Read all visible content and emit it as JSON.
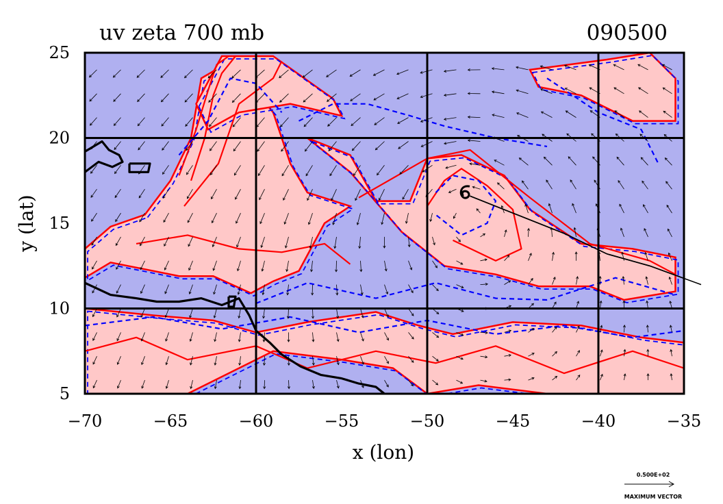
{
  "chart_data": {
    "type": "contour",
    "title": "uv zeta 700 mb",
    "timestamp": "090500",
    "xlabel": "x (lon)",
    "ylabel": "y (lat)",
    "xlim": [
      -70,
      -35
    ],
    "ylim": [
      5,
      25
    ],
    "x_ticks": [
      -70,
      -65,
      -60,
      -55,
      -50,
      -45,
      -40,
      -35
    ],
    "y_ticks": [
      5,
      10,
      15,
      20,
      25
    ],
    "x_tick_labels": [
      "−70",
      "−65",
      "−60",
      "−55",
      "−50",
      "−45",
      "−40",
      "−35"
    ],
    "y_tick_labels": [
      "5",
      "10",
      "15",
      "20",
      "25"
    ],
    "grid_lon": [
      -60,
      -50,
      -40
    ],
    "grid_lat": [
      10,
      20
    ],
    "grid": true,
    "colors": {
      "positive_fill": "#ffc8c8",
      "negative_fill": "#b0b0f0",
      "positive_contour": "#ff0000",
      "negative_contour": "#0000ff",
      "arrows": "#000000",
      "coastline": "#000000"
    },
    "positive_regions": [
      {
        "lon": [
          -66.5,
          -65.0,
          -63.8,
          -63.2,
          -61.5,
          -59.0,
          -58.0,
          -57.0,
          -54.5,
          -56.0,
          -57.5,
          -59.0,
          -60.3,
          -62.5,
          -64.5,
          -66.5,
          -68.5,
          -70.0,
          -70.0,
          -68.5
        ],
        "lat": [
          15.5,
          17.5,
          20.0,
          23.5,
          24.5,
          21.5,
          18.5,
          16.8,
          16.0,
          15.0,
          12.2,
          11.6,
          10.9,
          11.9,
          11.9,
          12.3,
          12.7,
          11.8,
          13.5,
          14.8
        ]
      },
      {
        "lon": [
          -63.5,
          -62.0,
          -59.0,
          -55.5,
          -55.0,
          -58.0,
          -61.0,
          -62.8
        ],
        "lat": [
          22.0,
          24.8,
          24.8,
          22.3,
          21.3,
          22.0,
          21.5,
          20.5
        ]
      },
      {
        "lon": [
          -57.0,
          -54.5,
          -51.5,
          -49.0,
          -46.0,
          -43.5,
          -40.5,
          -38.5,
          -35.5,
          -35.5,
          -38.0,
          -41.0,
          -44.0,
          -45.5,
          -48.0,
          -50.0,
          -51.0,
          -53.0,
          -54.5
        ],
        "lat": [
          20.0,
          18.0,
          14.5,
          12.5,
          12.0,
          11.3,
          11.3,
          10.5,
          11.0,
          13.0,
          13.5,
          13.8,
          15.8,
          17.8,
          19.0,
          18.8,
          16.3,
          16.3,
          19.0
        ]
      },
      {
        "lon": [
          -44.0,
          -39.5,
          -37.0,
          -35.5,
          -35.5,
          -38.0,
          -41.0,
          -43.5
        ],
        "lat": [
          24.0,
          24.6,
          25.0,
          23.5,
          21.0,
          21.0,
          22.5,
          23.0
        ]
      },
      {
        "lon": [
          -70.0,
          -66.0,
          -62.5,
          -60.0,
          -57.0,
          -53.0,
          -50.5,
          -48.5,
          -45.0,
          -41.0,
          -37.5,
          -35.0,
          -35.0,
          -38.0,
          -43.0,
          -47.0,
          -50.0,
          -52.0,
          -55.0,
          -59.0,
          -64.0,
          -70.0
        ],
        "lat": [
          10.0,
          9.6,
          9.3,
          8.6,
          9.2,
          9.8,
          9.0,
          8.5,
          9.2,
          9.0,
          8.3,
          8.0,
          5.0,
          5.0,
          5.0,
          5.5,
          5.0,
          6.5,
          7.0,
          7.5,
          5.0,
          5.0
        ]
      }
    ],
    "contour_lines": [
      {
        "color": "red",
        "style": "solid",
        "lon": [
          -64.5,
          -63.5,
          -62.8,
          -62.3,
          -61.6
        ],
        "lat": [
          17.8,
          20.5,
          22.8,
          24.3,
          24.8
        ]
      },
      {
        "color": "red",
        "style": "solid",
        "lon": [
          -63.8,
          -63.0,
          -62.5,
          -62.0,
          -61.2
        ],
        "lat": [
          17.5,
          20.0,
          22.5,
          23.8,
          24.8
        ]
      },
      {
        "color": "red",
        "style": "solid",
        "lon": [
          -64.2,
          -62.2,
          -61.0,
          -59.0,
          -58.5
        ],
        "lat": [
          16.0,
          18.5,
          22.0,
          23.5,
          24.5
        ]
      },
      {
        "color": "red",
        "style": "solid",
        "lon": [
          -54.0,
          -50.0,
          -47.5,
          -44.0,
          -40.5,
          -37.0,
          -35.5
        ],
        "lat": [
          16.5,
          18.8,
          19.3,
          16.5,
          13.8,
          12.8,
          12.0
        ]
      },
      {
        "color": "red",
        "style": "solid",
        "lon": [
          -50.0,
          -49.0,
          -48.0,
          -46.5,
          -45.0,
          -44.5,
          -46.0,
          -48.5
        ],
        "lat": [
          16.0,
          17.5,
          18.2,
          17.2,
          15.8,
          13.5,
          12.8,
          14.0
        ]
      },
      {
        "color": "red",
        "style": "solid",
        "lon": [
          -67.0,
          -64.0,
          -61.0,
          -58.5,
          -56.0,
          -54.5
        ],
        "lat": [
          13.8,
          14.3,
          13.5,
          13.3,
          13.8,
          12.6
        ]
      },
      {
        "color": "red",
        "style": "solid",
        "lon": [
          -70.0,
          -67.0,
          -64.0,
          -60.0,
          -57.0,
          -53.0,
          -49.5,
          -46.0,
          -42.0,
          -38.0,
          -35.0
        ],
        "lat": [
          7.5,
          8.3,
          7.0,
          7.8,
          6.5,
          7.5,
          6.8,
          7.8,
          6.2,
          7.5,
          6.5
        ]
      },
      {
        "color": "blue",
        "style": "dashed",
        "lon": [
          -64.5,
          -62.8,
          -61.5,
          -60.0,
          -58.5
        ],
        "lat": [
          19.0,
          21.0,
          23.5,
          23.2,
          21.5
        ]
      },
      {
        "color": "blue",
        "style": "dashed",
        "lon": [
          -57.5,
          -55.5,
          -53.5,
          -51.0,
          -49.0,
          -46.0,
          -43.0
        ],
        "lat": [
          21.0,
          22.0,
          22.0,
          21.3,
          20.7,
          20.0,
          19.5
        ]
      },
      {
        "color": "blue",
        "style": "dashed",
        "lon": [
          -49.5,
          -48.5,
          -47.0,
          -46.0,
          -46.5,
          -48.0,
          -49.5
        ],
        "lat": [
          16.8,
          17.8,
          17.5,
          16.3,
          15.0,
          14.3,
          15.5
        ]
      },
      {
        "color": "blue",
        "style": "dashed",
        "lon": [
          -60.0,
          -57.0,
          -53.0,
          -49.5,
          -46.0,
          -43.0,
          -39.0,
          -35.5
        ],
        "lat": [
          10.3,
          11.5,
          10.6,
          11.5,
          10.6,
          10.5,
          11.8,
          10.8
        ]
      },
      {
        "color": "blue",
        "style": "dashed",
        "lon": [
          -43.0,
          -40.0,
          -37.5,
          -36.5
        ],
        "lat": [
          23.5,
          21.5,
          20.5,
          18.5
        ]
      },
      {
        "color": "blue",
        "style": "dashed",
        "lon": [
          -70.0,
          -66.0,
          -62.0,
          -58.0,
          -54.0,
          -50.0,
          -46.0,
          -42.0,
          -38.0,
          -35.0
        ],
        "lat": [
          9.0,
          9.5,
          8.8,
          9.5,
          8.6,
          9.3,
          8.5,
          9.0,
          8.3,
          8.7
        ]
      }
    ],
    "wind_field": {
      "x": [
        -69.3,
        -67.9,
        -66.5,
        -65.1,
        -63.7,
        -62.3,
        -60.9,
        -59.5,
        -58.1,
        -56.7,
        -55.3,
        -53.9,
        -52.5,
        -51.1,
        -49.7,
        -48.3,
        -46.9,
        -45.5,
        -44.1,
        -42.7,
        -41.3,
        -39.9,
        -38.5,
        -37.1,
        -35.7
      ],
      "y": [
        5.8,
        7.2,
        8.6,
        10.0,
        11.4,
        12.8,
        14.2,
        15.6,
        17.0,
        18.4,
        19.8,
        21.2,
        22.6,
        24.0
      ],
      "vortex_center": [
        -48.0,
        16.8
      ],
      "easterly_speed": 0.55,
      "vortex_strength": 1.0
    },
    "coastlines": [
      {
        "lon": [
          -70.0,
          -68.5,
          -67.0,
          -65.8,
          -64.5,
          -63.2,
          -62.0,
          -61.0,
          -60.4,
          -60.0,
          -59.2,
          -58.5,
          -57.4,
          -56.2,
          -55.0,
          -54.0,
          -53.0,
          -52.5
        ],
        "lat": [
          11.5,
          10.8,
          10.6,
          10.4,
          10.4,
          10.6,
          10.2,
          10.6,
          9.6,
          8.7,
          8.0,
          7.3,
          6.6,
          6.1,
          5.9,
          5.6,
          5.4,
          5.0
        ]
      },
      {
        "lon": [
          -70.0,
          -69.0,
          -68.6,
          -68.0,
          -67.8,
          -68.4,
          -69.2,
          -70.0
        ],
        "lat": [
          19.2,
          19.8,
          19.3,
          19.0,
          18.6,
          18.3,
          18.6,
          18.0
        ]
      },
      {
        "lon": [
          -67.4,
          -66.2,
          -66.3,
          -67.4,
          -67.4
        ],
        "lat": [
          18.5,
          18.5,
          18.0,
          18.0,
          18.5
        ]
      },
      {
        "lon": [
          -61.6,
          -61.2,
          -61.3,
          -61.6,
          -61.6
        ],
        "lat": [
          10.7,
          10.7,
          10.1,
          10.1,
          10.7
        ]
      }
    ],
    "storm_track": {
      "lon": [
        -47.5,
        -45.0,
        -42.0,
        -39.5,
        -37.0,
        -34.0
      ],
      "lat": [
        16.6,
        15.6,
        14.4,
        13.2,
        12.5,
        11.4
      ]
    },
    "storm_symbol_position": [
      -47.8,
      16.8
    ],
    "reference_vector": {
      "label_top": "0.500E+02",
      "label_bottom": "MAXIMUM VECTOR"
    }
  }
}
